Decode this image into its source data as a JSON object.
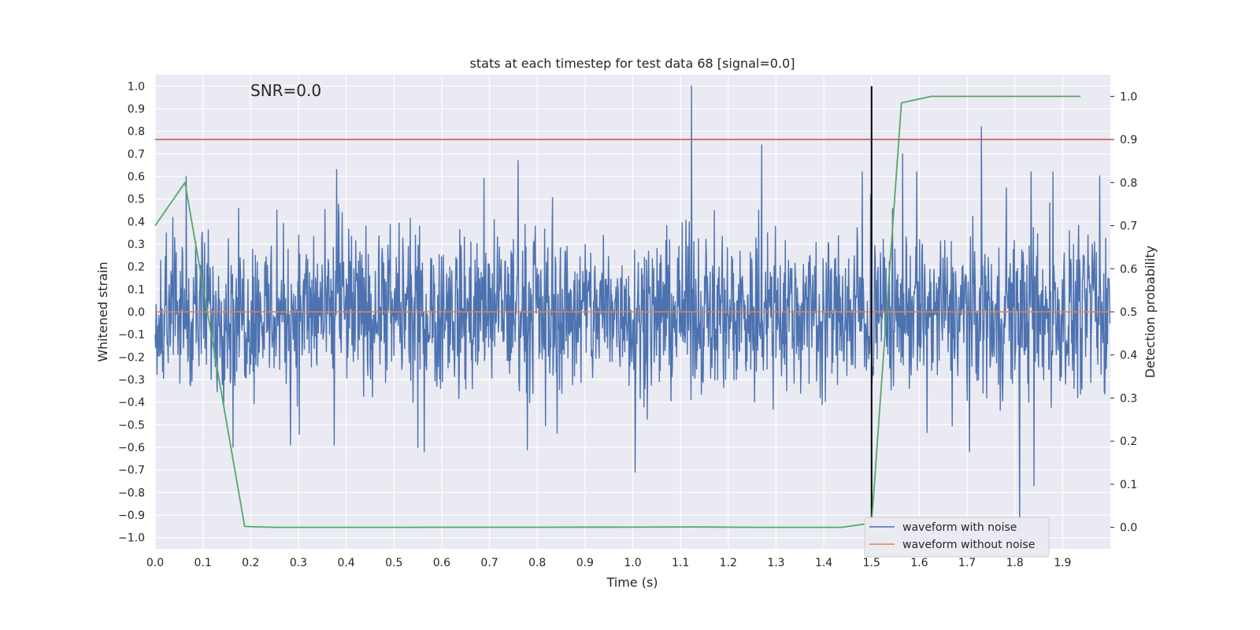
{
  "chart_data": {
    "type": "line",
    "title": "stats at each timestep for test data 68 [signal=0.0]",
    "xlabel": "Time (s)",
    "ylabel_left": "Whitened strain",
    "ylabel_right": "Detection probability",
    "annotation": "SNR=0.0",
    "xlim": [
      0.0,
      2.0
    ],
    "ylim_left": [
      -1.05,
      1.05
    ],
    "ylim_right": [
      -0.05,
      1.05
    ],
    "x_ticks": [
      "0.0",
      "0.1",
      "0.2",
      "0.3",
      "0.4",
      "0.5",
      "0.6",
      "0.7",
      "0.8",
      "0.9",
      "1.0",
      "1.1",
      "1.2",
      "1.3",
      "1.4",
      "1.5",
      "1.6",
      "1.7",
      "1.8",
      "1.9"
    ],
    "y_ticks_left": [
      "1.0",
      "0.9",
      "0.8",
      "0.7",
      "0.6",
      "0.5",
      "0.4",
      "0.3",
      "0.2",
      "0.1",
      "0.0",
      "−0.1",
      "−0.2",
      "−0.3",
      "−0.4",
      "−0.5",
      "−0.6",
      "−0.7",
      "−0.8",
      "−0.9",
      "−1.0"
    ],
    "y_ticks_right": [
      "1.0",
      "0.9",
      "0.8",
      "0.7",
      "0.6",
      "0.5",
      "0.4",
      "0.3",
      "0.2",
      "0.1",
      "0.0"
    ],
    "grid": true,
    "legend_position": "lower-right",
    "series": [
      {
        "name": "waveform with noise",
        "axis": "left",
        "color": "#4c72b0",
        "sampling": "noise, ~2048 samples over 0–2.0 s, amplitude mostly within ±0.5",
        "peaks": [
          {
            "x": 0.065,
            "y": 0.6
          },
          {
            "x": 0.38,
            "y": 0.63
          },
          {
            "x": 0.76,
            "y": 0.67
          },
          {
            "x": 1.123,
            "y": 1.0
          },
          {
            "x": 1.005,
            "y": -0.71
          },
          {
            "x": 1.27,
            "y": 0.74
          },
          {
            "x": 1.73,
            "y": 0.82
          },
          {
            "x": 1.81,
            "y": -0.97
          },
          {
            "x": 1.84,
            "y": -0.77
          },
          {
            "x": 0.375,
            "y": -0.59
          },
          {
            "x": 0.55,
            "y": -0.6
          },
          {
            "x": 1.565,
            "y": 0.7
          }
        ]
      },
      {
        "name": "waveform without noise",
        "axis": "left",
        "color": "#dd8452",
        "x": [
          0.0,
          2.0
        ],
        "y": [
          0.0,
          0.0
        ]
      },
      {
        "name": "",
        "axis": "right",
        "color": "#55a868",
        "x": [
          0.0,
          0.0625,
          0.125,
          0.1875,
          0.25,
          0.5,
          1.0,
          1.125,
          1.25,
          1.4375,
          1.5,
          1.5625,
          1.625,
          1.9375
        ],
        "y": [
          0.7,
          0.8,
          0.4,
          0.002,
          0.0,
          0.0,
          0.0005,
          0.001,
          0.0,
          0.0,
          0.01,
          0.985,
          1.0,
          1.0
        ]
      }
    ],
    "reference_lines": [
      {
        "orientation": "horizontal",
        "axis": "right",
        "value": 0.9,
        "color": "#c44e52"
      },
      {
        "orientation": "vertical",
        "value": 1.5,
        "y_range_left": [
          -0.95,
          1.0
        ],
        "color": "#000000"
      }
    ],
    "legend": [
      {
        "label": "waveform with noise",
        "color": "#4c72b0"
      },
      {
        "label": "waveform without noise",
        "color": "#dd8452"
      }
    ],
    "colors": {
      "axes_bg": "#eaeaf2",
      "grid": "#ffffff",
      "text": "#262626"
    }
  }
}
